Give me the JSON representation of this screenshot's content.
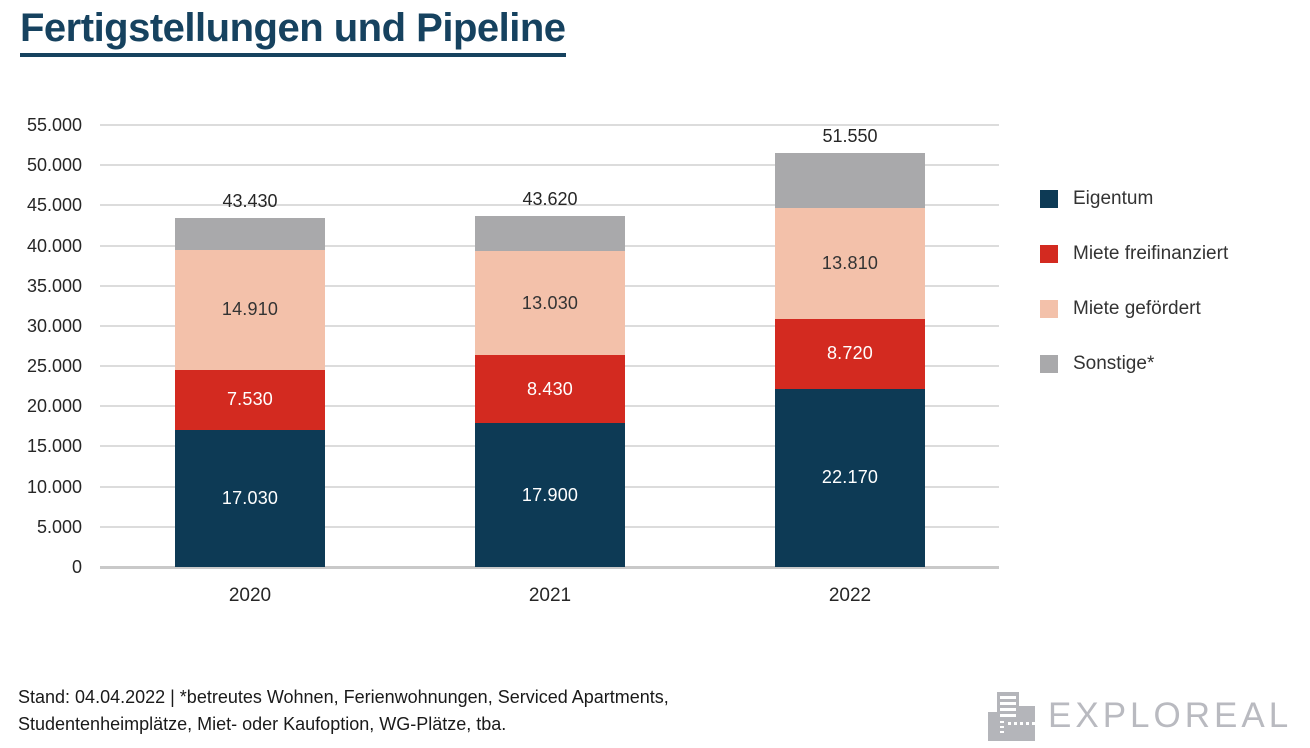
{
  "title": "Fertigstellungen und Pipeline",
  "chart_data": {
    "type": "bar",
    "stacked": true,
    "title": "Fertigstellungen und Pipeline",
    "categories": [
      "2020",
      "2021",
      "2022"
    ],
    "series": [
      {
        "name": "Eigentum",
        "color": "#0d3a55",
        "label_color": "#ffffff",
        "values": [
          17030,
          17900,
          22170
        ],
        "labels": [
          "17.030",
          "17.900",
          "22.170"
        ]
      },
      {
        "name": "Miete freifinanziert",
        "color": "#d32a20",
        "label_color": "#ffffff",
        "values": [
          7530,
          8430,
          8720
        ],
        "labels": [
          "7.530",
          "8.430",
          "8.720"
        ]
      },
      {
        "name": "Miete gefördert",
        "color": "#f3c1aa",
        "label_color": "#333333",
        "values": [
          14910,
          13030,
          13810
        ],
        "labels": [
          "14.910",
          "13.030",
          "13.810"
        ]
      },
      {
        "name": "Sonstige*",
        "color": "#a9a9ab",
        "label_color": "#333333",
        "values": [
          3960,
          4260,
          6850
        ],
        "labels": [
          "",
          "",
          ""
        ]
      }
    ],
    "totals": [
      43430,
      43620,
      51550
    ],
    "total_labels": [
      "43.430",
      "43.620",
      "51.550"
    ],
    "y_axis": {
      "min": 0,
      "max": 55000,
      "step": 5000,
      "tick_labels": [
        "0",
        "5.000",
        "10.000",
        "15.000",
        "20.000",
        "25.000",
        "30.000",
        "35.000",
        "40.000",
        "45.000",
        "50.000",
        "55.000"
      ]
    },
    "legend_position": "right",
    "grid": true
  },
  "footer": {
    "note_line1": "Stand: 04.04.2022 | *betreutes Wohnen, Ferienwohnungen, Serviced Apartments,",
    "note_line2": "Studentenheimplätze, Miet- oder Kaufoption, WG-Plätze, tba.",
    "logo_text": "EXPLOREAL"
  },
  "colors": {
    "title_accent": "#16425f",
    "axis_text": "#262626",
    "gridline": "#dcdcdc",
    "axis_line": "#c9c9c9",
    "logo_gray": "#b9bac0"
  }
}
